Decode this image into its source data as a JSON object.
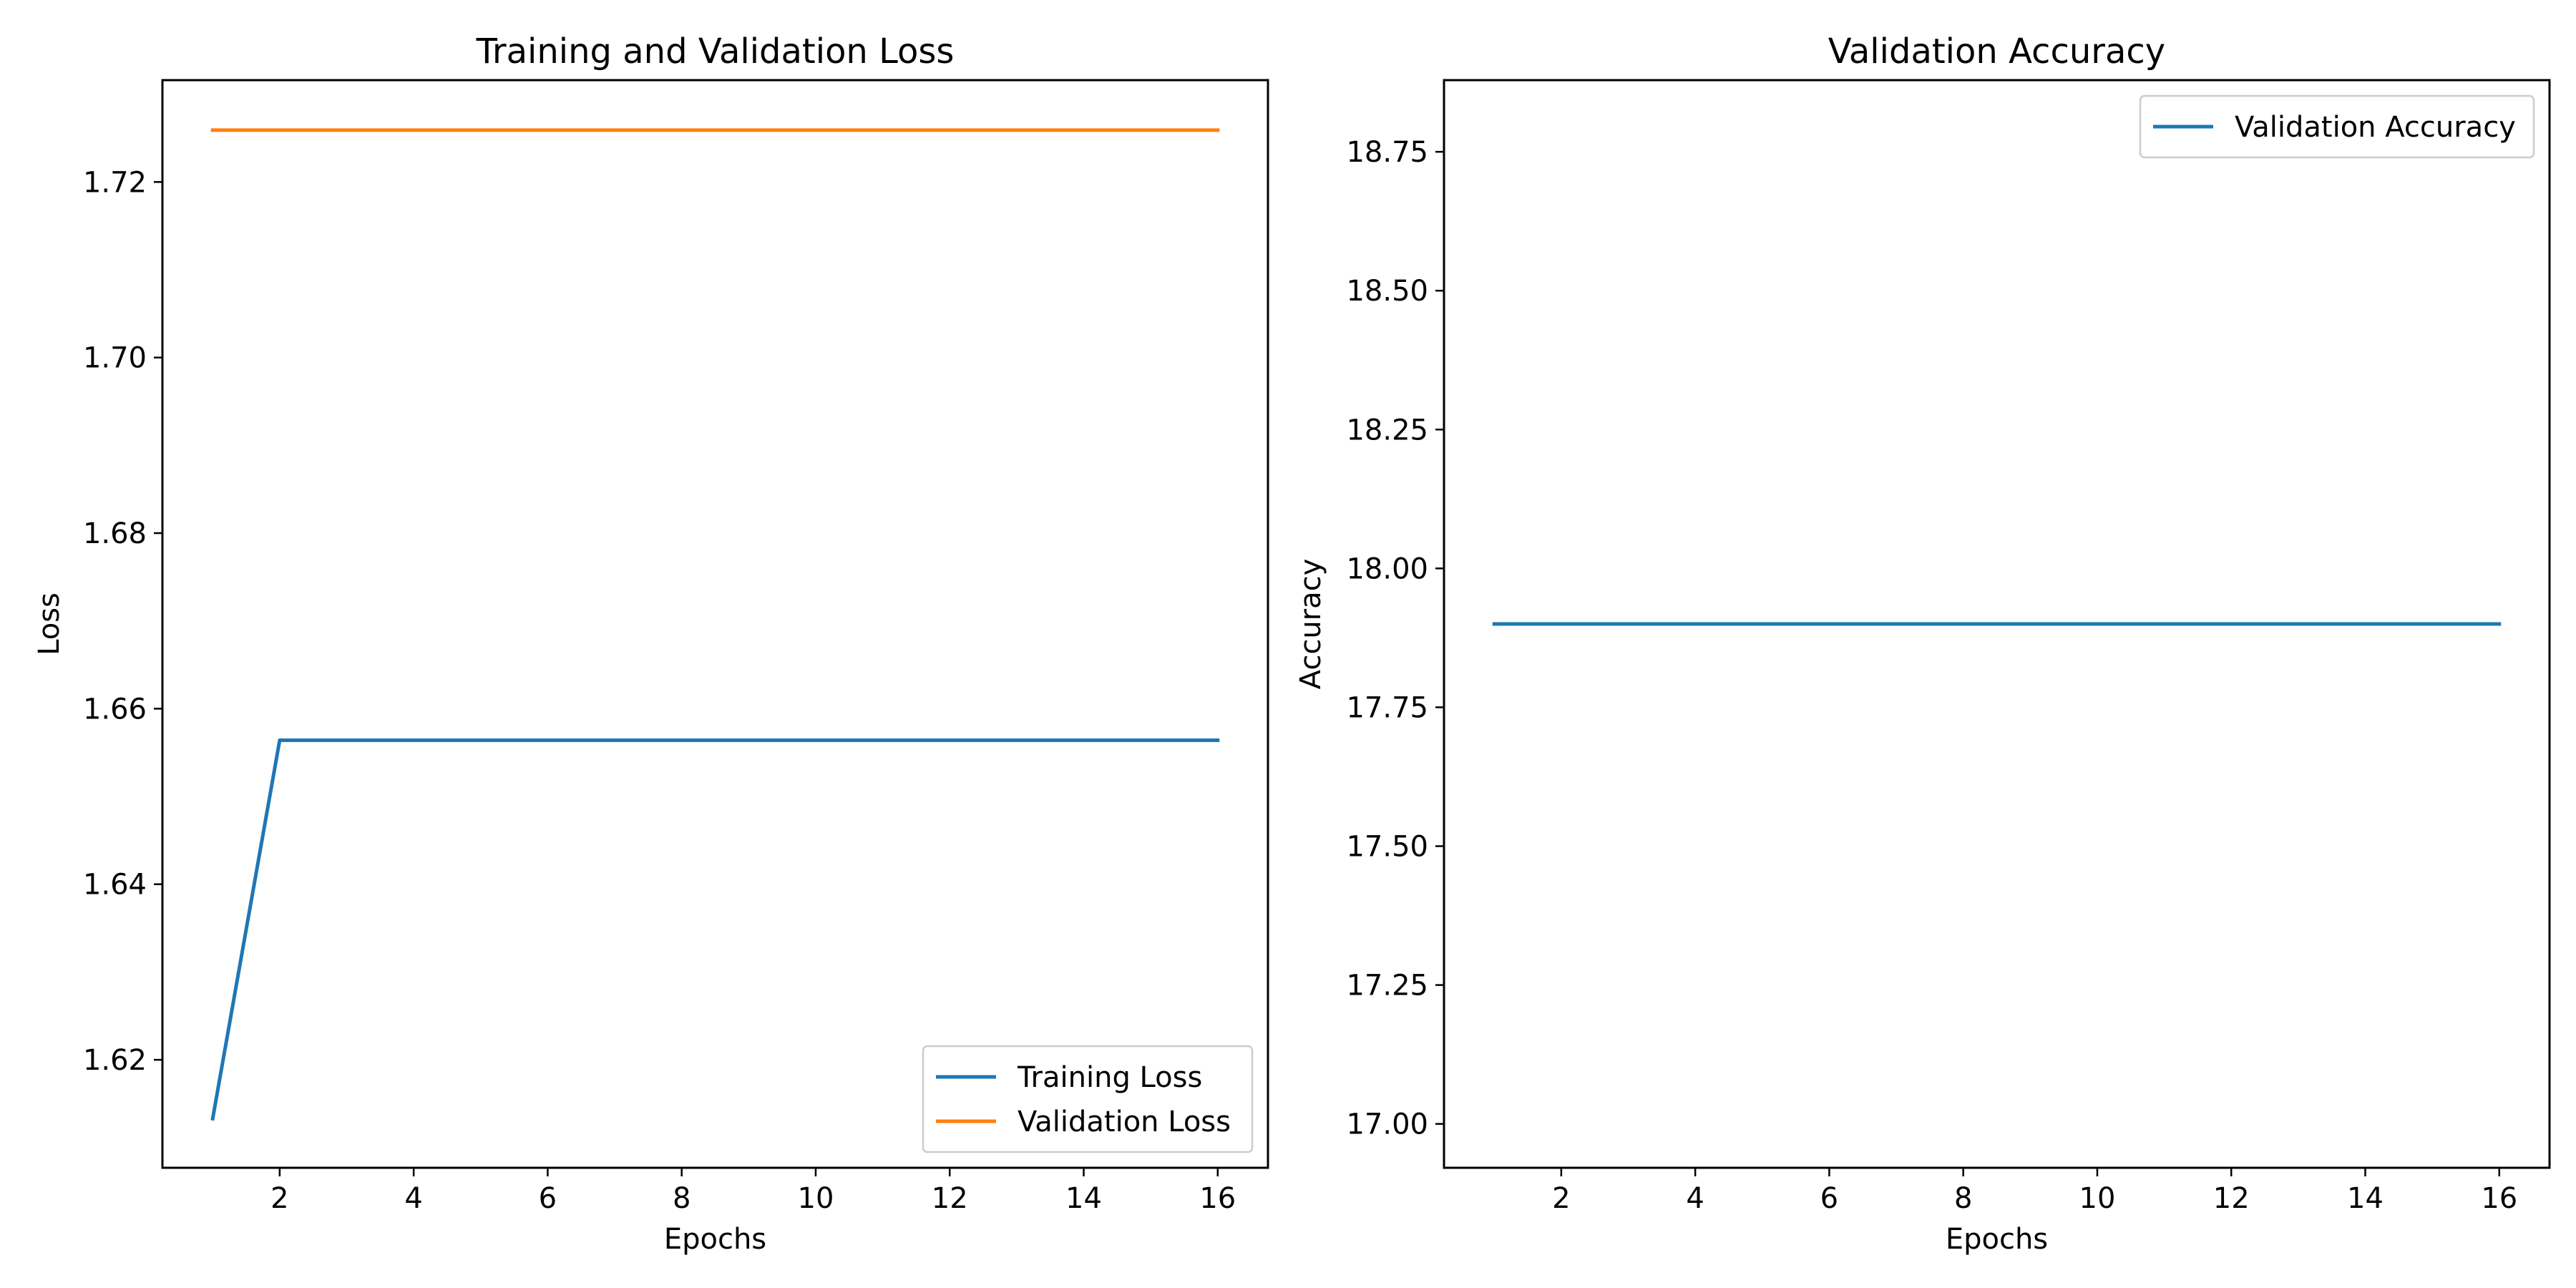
{
  "chart_data": [
    {
      "type": "line",
      "title": "Training and Validation Loss",
      "xlabel": "Epochs",
      "ylabel": "Loss",
      "xlim": [
        0.25,
        16.75
      ],
      "ylim": [
        1.6077,
        1.7316
      ],
      "xticks": [
        2,
        4,
        6,
        8,
        10,
        12,
        14,
        16
      ],
      "yticks": [
        1.62,
        1.64,
        1.66,
        1.68,
        1.7,
        1.72
      ],
      "ytick_labels": [
        "1.62",
        "1.64",
        "1.66",
        "1.68",
        "1.70",
        "1.72"
      ],
      "x": [
        1,
        2,
        3,
        4,
        5,
        6,
        7,
        8,
        9,
        10,
        11,
        12,
        13,
        14,
        15,
        16
      ],
      "legend": "lower right",
      "grid": false,
      "series": [
        {
          "name": "Training Loss",
          "color": "#1f77b4",
          "values": [
            1.6133,
            1.6564,
            1.6564,
            1.6564,
            1.6564,
            1.6564,
            1.6564,
            1.6564,
            1.6564,
            1.6564,
            1.6564,
            1.6564,
            1.6564,
            1.6564,
            1.6564,
            1.6564
          ]
        },
        {
          "name": "Validation Loss",
          "color": "#ff7f0e",
          "values": [
            1.7259,
            1.7259,
            1.7259,
            1.7259,
            1.7259,
            1.7259,
            1.7259,
            1.7259,
            1.7259,
            1.7259,
            1.7259,
            1.7259,
            1.7259,
            1.7259,
            1.7259,
            1.7259
          ]
        }
      ]
    },
    {
      "type": "line",
      "title": "Validation Accuracy",
      "xlabel": "Epochs",
      "ylabel": "Accuracy",
      "xlim": [
        0.25,
        16.75
      ],
      "ylim": [
        16.921,
        18.879
      ],
      "xticks": [
        2,
        4,
        6,
        8,
        10,
        12,
        14,
        16
      ],
      "yticks": [
        17.0,
        17.25,
        17.5,
        17.75,
        18.0,
        18.25,
        18.5,
        18.75
      ],
      "ytick_labels": [
        "17.00",
        "17.25",
        "17.50",
        "17.75",
        "18.00",
        "18.25",
        "18.50",
        "18.75"
      ],
      "x": [
        1,
        2,
        3,
        4,
        5,
        6,
        7,
        8,
        9,
        10,
        11,
        12,
        13,
        14,
        15,
        16
      ],
      "legend": "upper right",
      "grid": false,
      "series": [
        {
          "name": "Validation Accuracy",
          "color": "#1f77b4",
          "values": [
            17.9,
            17.9,
            17.9,
            17.9,
            17.9,
            17.9,
            17.9,
            17.9,
            17.9,
            17.9,
            17.9,
            17.9,
            17.9,
            17.9,
            17.9,
            17.9
          ]
        }
      ]
    }
  ]
}
